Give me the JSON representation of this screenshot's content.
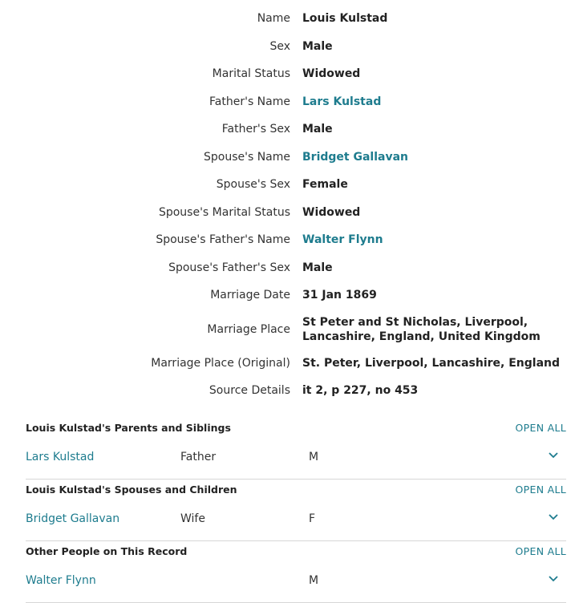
{
  "facts": [
    {
      "label": "Name",
      "value": "Louis Kulstad",
      "link": false
    },
    {
      "label": "Sex",
      "value": "Male",
      "link": false
    },
    {
      "label": "Marital Status",
      "value": "Widowed",
      "link": false
    },
    {
      "label": "Father's Name",
      "value": "Lars Kulstad",
      "link": true
    },
    {
      "label": "Father's Sex",
      "value": "Male",
      "link": false
    },
    {
      "label": "Spouse's Name",
      "value": "Bridget Gallavan",
      "link": true
    },
    {
      "label": "Spouse's Sex",
      "value": "Female",
      "link": false
    },
    {
      "label": "Spouse's Marital Status",
      "value": "Widowed",
      "link": false
    },
    {
      "label": "Spouse's Father's Name",
      "value": "Walter Flynn",
      "link": true
    },
    {
      "label": "Spouse's Father's Sex",
      "value": "Male",
      "link": false
    },
    {
      "label": "Marriage Date",
      "value": "31 Jan 1869",
      "link": false
    },
    {
      "label": "Marriage Place",
      "value": "St Peter and St Nicholas, Liverpool, Lancashire, England, United Kingdom",
      "link": false
    },
    {
      "label": "Marriage Place (Original)",
      "value": "St. Peter, Liverpool, Lancashire, England",
      "link": false
    },
    {
      "label": "Source Details",
      "value": "it 2, p 227, no 453",
      "link": false
    }
  ],
  "sections": [
    {
      "title": "Louis Kulstad's Parents and Siblings",
      "open_all": "OPEN ALL",
      "rows": [
        {
          "name": "Lars Kulstad",
          "relationship": "Father",
          "sex": "M"
        }
      ]
    },
    {
      "title": "Louis Kulstad's Spouses and Children",
      "open_all": "OPEN ALL",
      "rows": [
        {
          "name": "Bridget Gallavan",
          "relationship": "Wife",
          "sex": "F"
        }
      ]
    },
    {
      "title": "Other People on This Record",
      "open_all": "OPEN ALL",
      "rows": [
        {
          "name": "Walter Flynn",
          "relationship": "",
          "sex": "M"
        }
      ]
    }
  ],
  "icons": {
    "expand": "chevron-down-icon"
  },
  "colors": {
    "link": "#1e7c8e"
  }
}
